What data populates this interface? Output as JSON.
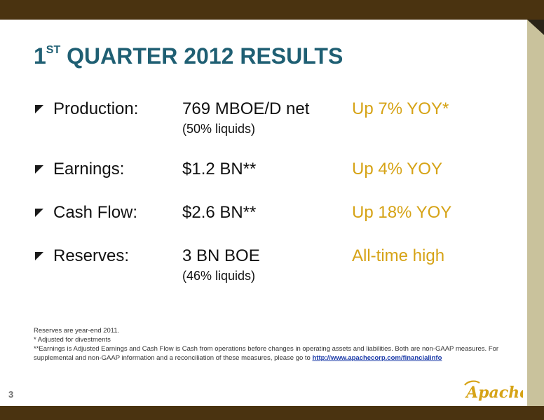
{
  "slide": {
    "title_main": "1",
    "title_sup": "ST",
    "title_rest": " QUARTER 2012 RESULTS",
    "page_number": "3"
  },
  "results": [
    {
      "label": "Production:",
      "value": "769 MBOE/D net",
      "sub": "(50% liquids)",
      "change": "Up 7% YOY*"
    },
    {
      "label": "Earnings:",
      "value": "$1.2 BN**",
      "sub": "",
      "change": "Up 4% YOY"
    },
    {
      "label": "Cash Flow:",
      "value": "$2.6 BN**",
      "sub": "",
      "change": "Up 18% YOY"
    },
    {
      "label": "Reserves:",
      "value": "3 BN BOE",
      "sub": "(46% liquids)",
      "change": "All-time high"
    }
  ],
  "footnotes": {
    "line1": "Reserves are year-end 2011.",
    "line2": "* Adjusted for divestments",
    "line3": "**Earnings is Adjusted Earnings and Cash Flow is Cash from operations before changes in operating assets and liabilities. Both are non-GAAP measures. For supplemental and non-GAAP information and a reconciliation of these measures, please go to ",
    "link": "http://www.apachecorp.com/financialinfo"
  },
  "logo": {
    "text": "Apache"
  },
  "colors": {
    "title": "#1f5f73",
    "highlight": "#d6a316",
    "bar": "#4a3310",
    "strip": "#c9c29c"
  },
  "icons": {
    "bullet": "triangle-bullet-icon"
  }
}
